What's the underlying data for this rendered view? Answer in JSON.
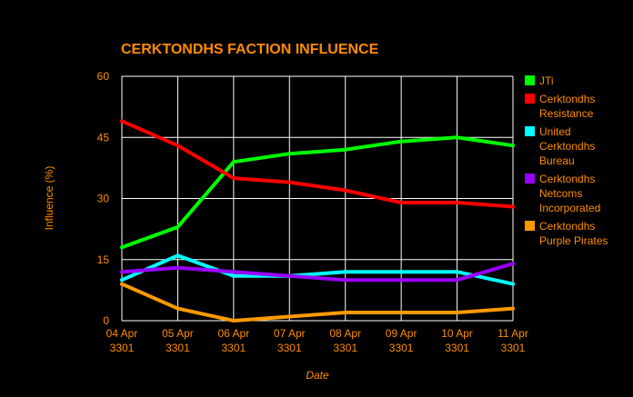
{
  "chart_data": {
    "type": "line",
    "title": "CERKTONDHS FACTION INFLUENCE",
    "xlabel": "Date",
    "ylabel": "Influence (%)",
    "ylim": [
      0,
      60
    ],
    "yticks": [
      "0",
      "15",
      "30",
      "45",
      "60"
    ],
    "categories": [
      [
        "04 Apr",
        "3301"
      ],
      [
        "05 Apr",
        "3301"
      ],
      [
        "06 Apr",
        "3301"
      ],
      [
        "07 Apr",
        "3301"
      ],
      [
        "08 Apr",
        "3301"
      ],
      [
        "09 Apr",
        "3301"
      ],
      [
        "10 Apr",
        "3301"
      ],
      [
        "11 Apr",
        "3301"
      ]
    ],
    "grid": true,
    "legend_position": "right",
    "series": [
      {
        "name": [
          "JTi"
        ],
        "color": "#00ff00",
        "values": [
          18,
          23,
          39,
          41,
          42,
          44,
          45,
          43
        ]
      },
      {
        "name": [
          "Cerktondhs",
          "Resistance"
        ],
        "color": "#ff0000",
        "values": [
          49,
          43,
          35,
          34,
          32,
          29,
          29,
          28
        ]
      },
      {
        "name": [
          "United",
          "Cerktondhs",
          "Bureau"
        ],
        "color": "#00ffff",
        "values": [
          10,
          16,
          11,
          11,
          12,
          12,
          12,
          9
        ]
      },
      {
        "name": [
          "Cerktondhs",
          "Netcoms",
          "Incorporated"
        ],
        "color": "#9900ff",
        "values": [
          12,
          13,
          12,
          11,
          10,
          10,
          10,
          14
        ]
      },
      {
        "name": [
          "Cerktondhs",
          "Purple Pirates"
        ],
        "color": "#ff9900",
        "values": [
          9,
          3,
          0,
          1,
          2,
          2,
          2,
          3
        ]
      }
    ]
  }
}
